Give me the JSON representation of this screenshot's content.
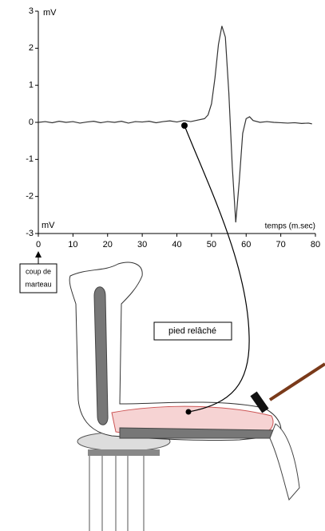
{
  "chart_data": {
    "type": "line",
    "y_label": "mV",
    "x_label": "temps (m.sec)",
    "x": [
      0,
      2,
      4,
      6,
      8,
      10,
      12,
      14,
      16,
      18,
      20,
      22,
      24,
      26,
      28,
      30,
      32,
      34,
      36,
      38,
      40,
      42,
      44,
      46,
      48,
      49,
      50,
      51,
      52,
      53,
      54,
      55,
      56,
      57,
      58,
      59,
      60,
      61,
      62,
      64,
      66,
      68,
      70,
      72,
      74,
      76,
      78,
      79
    ],
    "values": [
      0,
      0.02,
      -0.01,
      0.03,
      0,
      0.02,
      -0.02,
      0.01,
      0.03,
      -0.01,
      0.02,
      0,
      0.03,
      -0.02,
      0.02,
      0.01,
      0.03,
      -0.01,
      0.02,
      0.04,
      0.01,
      0.05,
      0.02,
      0.06,
      0.1,
      0.2,
      0.5,
      1.2,
      2.1,
      2.6,
      2.3,
      0.8,
      -1.2,
      -2.7,
      -1.6,
      -0.3,
      0.1,
      0.15,
      0.05,
      0,
      0.02,
      0,
      -0.01,
      -0.02,
      -0.01,
      -0.03,
      -0.02,
      -0.04
    ],
    "color": "#333333",
    "xlim": [
      0,
      80
    ],
    "xticks": [
      0,
      10,
      20,
      30,
      40,
      50,
      60,
      70,
      80
    ],
    "ylim": [
      -3,
      3
    ],
    "yticks": [
      -3,
      -2,
      -1,
      0,
      1,
      2,
      3
    ],
    "annotations": {
      "stimulus": [
        "coup de",
        "marteau"
      ],
      "state": "pied relâché"
    }
  }
}
